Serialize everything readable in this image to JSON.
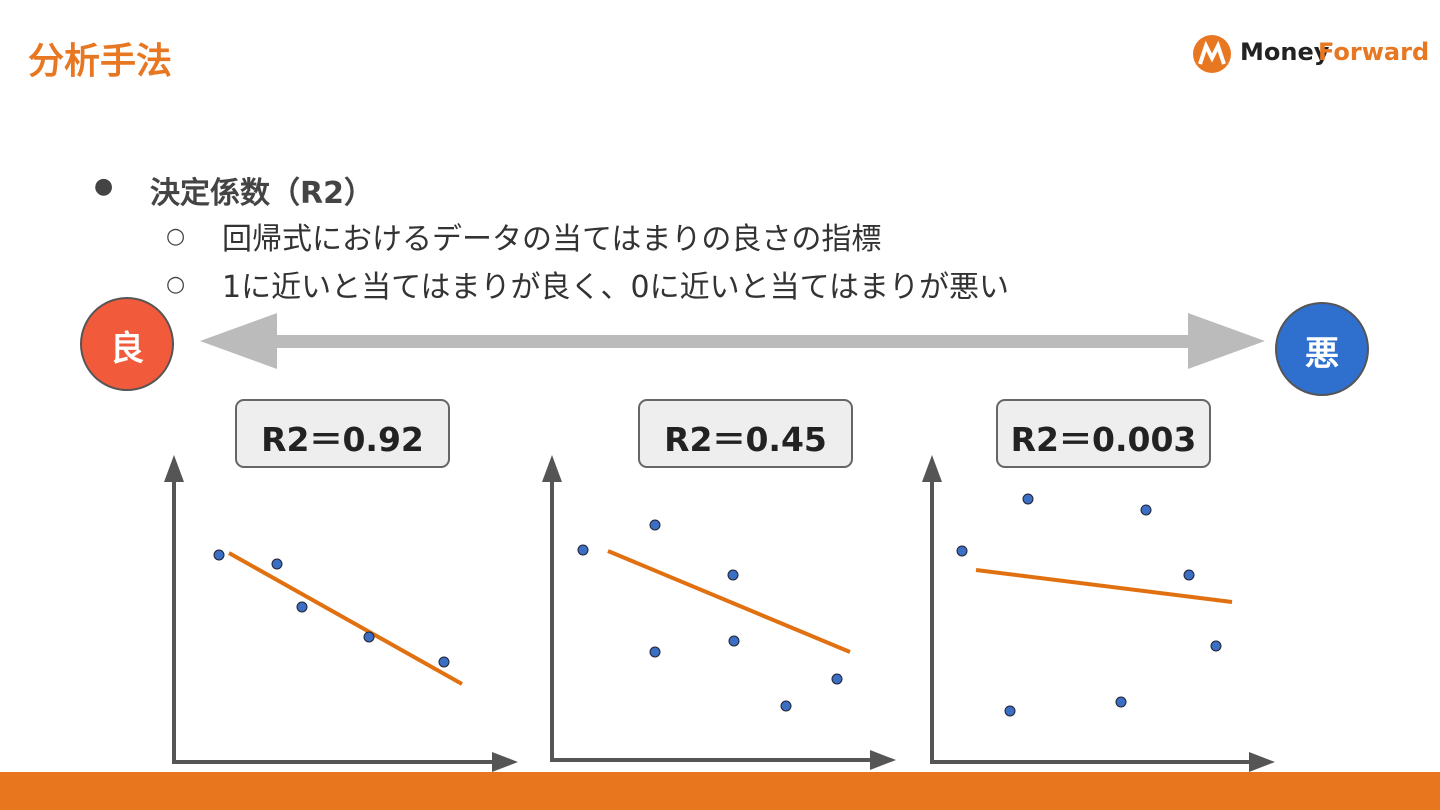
{
  "header": {
    "title": "分析手法",
    "logo": {
      "brand_1": "Money",
      "brand_2": "Forward"
    }
  },
  "bullets": [
    {
      "text": "決定係数（R2）",
      "sub": [
        "回帰式におけるデータの当てはまりの良さの指標",
        "1に近いと当てはまりが良く、0に近いと当てはまりが悪い"
      ]
    }
  ],
  "scale": {
    "good": "良",
    "bad": "悪"
  },
  "panels": [
    {
      "label": "R2＝0.92"
    },
    {
      "label": "R2＝0.45"
    },
    {
      "label": "R2＝0.003"
    }
  ]
}
